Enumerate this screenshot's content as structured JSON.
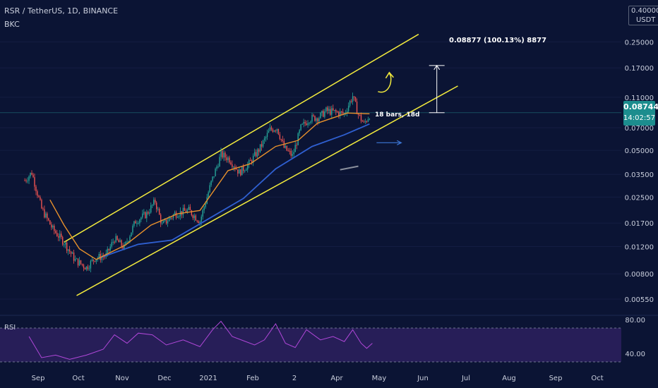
{
  "header": {
    "symbol_line": "RSR / TetherUS, 1D, BINANCE",
    "indicator": "BKC",
    "unit_line1": "0.40000",
    "unit_line2": "USDT"
  },
  "rsi_label": "RSI",
  "last_price": "0.08744",
  "countdown": "14:02:57",
  "measure_label": "0.08877 (100.13%) 8877",
  "bars_label": "18 bars, 18d",
  "colors": {
    "background": "#0b1434",
    "channel": "#f2ea3d",
    "ma_short": "#e8912c",
    "ma_long": "#2f5fd0",
    "rsi_line": "#b047d8",
    "rsi_band": "#2a1f5c",
    "up_candle": "#26a69a",
    "down_candle": "#ef5350",
    "price_tag": "#1c8d8e"
  },
  "chart_data": {
    "type": "candlestick",
    "x_ticks": [
      "Sep",
      "Oct",
      "Nov",
      "Dec",
      "2021",
      "Feb",
      "2",
      "Apr",
      "May",
      "Jun",
      "Jul",
      "Aug",
      "Sep",
      "Oct"
    ],
    "y_scale": "log",
    "y_ticks": [
      "0.25000",
      "0.17000",
      "0.11000",
      "0.07000",
      "0.05000",
      "0.03500",
      "0.02500",
      "0.01700",
      "0.01200",
      "0.00800",
      "0.00550"
    ],
    "ylim": [
      0.0045,
      0.4
    ],
    "price_path": [
      {
        "date": "2020-08-25",
        "close": 0.032
      },
      {
        "date": "2020-08-30",
        "close": 0.036
      },
      {
        "date": "2020-09-06",
        "close": 0.021
      },
      {
        "date": "2020-09-14",
        "close": 0.0155
      },
      {
        "date": "2020-09-22",
        "close": 0.0128
      },
      {
        "date": "2020-09-30",
        "close": 0.0098
      },
      {
        "date": "2020-10-08",
        "close": 0.0088
      },
      {
        "date": "2020-10-14",
        "close": 0.0101
      },
      {
        "date": "2020-10-22",
        "close": 0.0105
      },
      {
        "date": "2020-10-28",
        "close": 0.0135
      },
      {
        "date": "2020-11-04",
        "close": 0.0118
      },
      {
        "date": "2020-11-12",
        "close": 0.0175
      },
      {
        "date": "2020-11-20",
        "close": 0.0195
      },
      {
        "date": "2020-11-26",
        "close": 0.0235
      },
      {
        "date": "2020-12-01",
        "close": 0.0165
      },
      {
        "date": "2020-12-10",
        "close": 0.0195
      },
      {
        "date": "2020-12-20",
        "close": 0.0205
      },
      {
        "date": "2020-12-28",
        "close": 0.0175
      },
      {
        "date": "2021-01-05",
        "close": 0.031
      },
      {
        "date": "2021-01-12",
        "close": 0.047
      },
      {
        "date": "2021-01-18",
        "close": 0.044
      },
      {
        "date": "2021-01-25",
        "close": 0.036
      },
      {
        "date": "2021-02-01",
        "close": 0.041
      },
      {
        "date": "2021-02-09",
        "close": 0.052
      },
      {
        "date": "2021-02-16",
        "close": 0.068
      },
      {
        "date": "2021-02-21",
        "close": 0.07
      },
      {
        "date": "2021-02-26",
        "close": 0.052
      },
      {
        "date": "2021-03-04",
        "close": 0.046
      },
      {
        "date": "2021-03-10",
        "close": 0.07
      },
      {
        "date": "2021-03-16",
        "close": 0.08
      },
      {
        "date": "2021-03-23",
        "close": 0.082
      },
      {
        "date": "2021-03-28",
        "close": 0.09
      },
      {
        "date": "2021-04-04",
        "close": 0.088
      },
      {
        "date": "2021-04-10",
        "close": 0.086
      },
      {
        "date": "2021-04-16",
        "close": 0.112
      },
      {
        "date": "2021-04-20",
        "close": 0.085
      },
      {
        "date": "2021-04-24",
        "close": 0.074
      },
      {
        "date": "2021-04-29",
        "close": 0.0874
      }
    ],
    "ma_short": [
      {
        "date": "2020-09-12",
        "value": 0.024
      },
      {
        "date": "2020-09-22",
        "value": 0.0165
      },
      {
        "date": "2020-10-03",
        "value": 0.0116
      },
      {
        "date": "2020-10-15",
        "value": 0.0099
      },
      {
        "date": "2020-11-05",
        "value": 0.0123
      },
      {
        "date": "2020-11-23",
        "value": 0.0165
      },
      {
        "date": "2020-12-12",
        "value": 0.0195
      },
      {
        "date": "2020-12-28",
        "value": 0.0205
      },
      {
        "date": "2021-01-17",
        "value": 0.037
      },
      {
        "date": "2021-02-02",
        "value": 0.041
      },
      {
        "date": "2021-02-20",
        "value": 0.053
      },
      {
        "date": "2021-03-08",
        "value": 0.058
      },
      {
        "date": "2021-03-22",
        "value": 0.075
      },
      {
        "date": "2021-04-12",
        "value": 0.087
      },
      {
        "date": "2021-04-28",
        "value": 0.086
      }
    ],
    "ma_long": [
      {
        "date": "2020-10-18",
        "value": 0.0102
      },
      {
        "date": "2020-11-14",
        "value": 0.0124
      },
      {
        "date": "2020-12-08",
        "value": 0.0132
      },
      {
        "date": "2020-12-28",
        "value": 0.0168
      },
      {
        "date": "2021-01-28",
        "value": 0.0245
      },
      {
        "date": "2021-02-20",
        "value": 0.038
      },
      {
        "date": "2021-03-18",
        "value": 0.053
      },
      {
        "date": "2021-04-10",
        "value": 0.063
      },
      {
        "date": "2021-04-28",
        "value": 0.074
      }
    ],
    "channel_upper": [
      {
        "date": "2020-09-22",
        "price": 0.0128
      },
      {
        "date": "2021-06-02",
        "price": 0.28
      }
    ],
    "channel_lower": [
      {
        "date": "2020-10-01",
        "price": 0.0058
      },
      {
        "date": "2021-06-30",
        "price": 0.13
      }
    ],
    "projection": {
      "from_price": 0.0874,
      "to_price": 0.1762,
      "change_pct": 100.13,
      "date": "2021-06-15"
    },
    "rsi": {
      "y_ticks": [
        "80.00",
        "40.00"
      ],
      "ylim": [
        20,
        90
      ],
      "upper": 70,
      "lower": 30,
      "values": [
        {
          "date": "2020-08-28",
          "v": 60
        },
        {
          "date": "2020-09-06",
          "v": 35
        },
        {
          "date": "2020-09-16",
          "v": 38
        },
        {
          "date": "2020-09-26",
          "v": 33
        },
        {
          "date": "2020-10-08",
          "v": 38
        },
        {
          "date": "2020-10-20",
          "v": 45
        },
        {
          "date": "2020-10-28",
          "v": 62
        },
        {
          "date": "2020-11-06",
          "v": 52
        },
        {
          "date": "2020-11-14",
          "v": 64
        },
        {
          "date": "2020-11-24",
          "v": 62
        },
        {
          "date": "2020-12-04",
          "v": 50
        },
        {
          "date": "2020-12-16",
          "v": 56
        },
        {
          "date": "2020-12-28",
          "v": 48
        },
        {
          "date": "2021-01-06",
          "v": 68
        },
        {
          "date": "2021-01-12",
          "v": 78
        },
        {
          "date": "2021-01-20",
          "v": 60
        },
        {
          "date": "2021-01-28",
          "v": 55
        },
        {
          "date": "2021-02-05",
          "v": 50
        },
        {
          "date": "2021-02-12",
          "v": 56
        },
        {
          "date": "2021-02-20",
          "v": 75
        },
        {
          "date": "2021-02-27",
          "v": 52
        },
        {
          "date": "2021-03-06",
          "v": 47
        },
        {
          "date": "2021-03-14",
          "v": 68
        },
        {
          "date": "2021-03-24",
          "v": 56
        },
        {
          "date": "2021-04-02",
          "v": 60
        },
        {
          "date": "2021-04-10",
          "v": 54
        },
        {
          "date": "2021-04-16",
          "v": 68
        },
        {
          "date": "2021-04-22",
          "v": 52
        },
        {
          "date": "2021-04-26",
          "v": 46
        },
        {
          "date": "2021-04-30",
          "v": 52
        }
      ]
    }
  }
}
